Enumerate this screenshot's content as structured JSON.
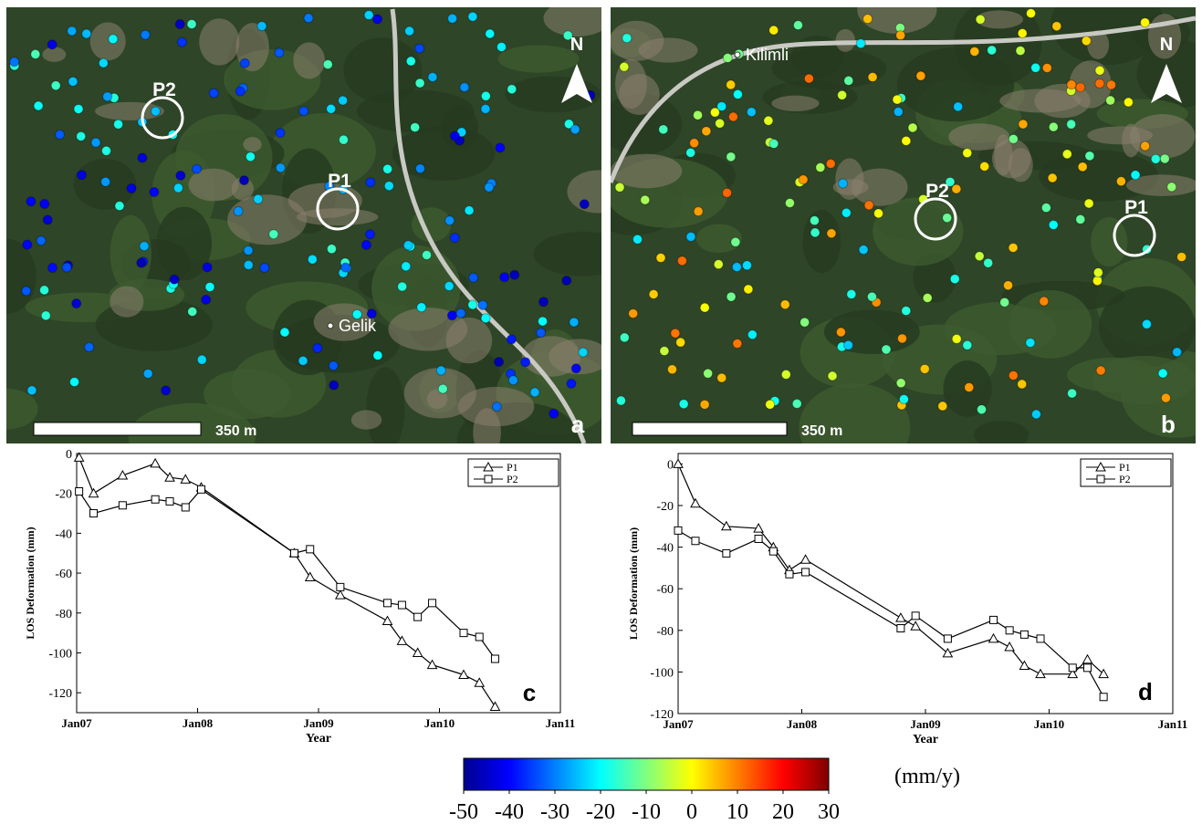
{
  "maps": [
    {
      "letter": "a",
      "scale": "350 m",
      "north": "N",
      "place": "Gelik",
      "points": [
        "P2",
        "P1"
      ]
    },
    {
      "letter": "b",
      "scale": "350 m",
      "north": "N",
      "place": "Kilimli",
      "points": [
        "P2",
        "P1"
      ]
    }
  ],
  "chart_data": [
    {
      "type": "line",
      "panel": "c",
      "xlabel": "Year",
      "ylabel": "LOS Deformation (mm)",
      "xlim": [
        2007,
        2011
      ],
      "ylim": [
        -130,
        0
      ],
      "xticks": [
        {
          "value": 2007,
          "label": "Jan07"
        },
        {
          "value": 2008,
          "label": "Jan08"
        },
        {
          "value": 2009,
          "label": "Jan09"
        },
        {
          "value": 2010,
          "label": "Jan10"
        },
        {
          "value": 2011,
          "label": "Jan11"
        }
      ],
      "yticks": [
        0,
        -20,
        -40,
        -60,
        -80,
        -100,
        -120
      ],
      "legend": "upper right",
      "x": [
        2007.02,
        2007.14,
        2007.38,
        2007.65,
        2007.77,
        2007.9,
        2008.03,
        2008.8,
        2008.93,
        2009.18,
        2009.57,
        2009.69,
        2009.82,
        2009.94,
        2010.2,
        2010.33,
        2010.46
      ],
      "series": [
        {
          "name": "P1",
          "marker": "triangle",
          "color": "#000000",
          "values": [
            -2,
            -20,
            -11,
            -5,
            -12,
            -13,
            -17,
            -50,
            -62,
            -71,
            -84,
            -94,
            -100,
            -106,
            -111,
            -115,
            -127
          ]
        },
        {
          "name": "P2",
          "marker": "square",
          "color": "#000000",
          "values": [
            -19,
            -30,
            -26,
            -23,
            -24,
            -27,
            -18,
            -50,
            -48,
            -67,
            -75,
            -76,
            -82,
            -75,
            -90,
            -92,
            -103
          ]
        }
      ]
    },
    {
      "type": "line",
      "panel": "d",
      "xlabel": "Year",
      "ylabel": "LOS Deformation (mm)",
      "xlim": [
        2007,
        2011
      ],
      "ylim": [
        -120,
        5
      ],
      "xticks": [
        {
          "value": 2007,
          "label": "Jan07"
        },
        {
          "value": 2008,
          "label": "Jan08"
        },
        {
          "value": 2009,
          "label": "Jan09"
        },
        {
          "value": 2010,
          "label": "Jan10"
        },
        {
          "value": 2011,
          "label": "Jan11"
        }
      ],
      "yticks": [
        0,
        -20,
        -40,
        -60,
        -80,
        -100,
        -120
      ],
      "legend": "upper right",
      "x": [
        2007.0,
        2007.14,
        2007.39,
        2007.65,
        2007.77,
        2007.9,
        2008.03,
        2008.8,
        2008.92,
        2009.18,
        2009.55,
        2009.68,
        2009.8,
        2009.93,
        2010.19,
        2010.31,
        2010.44
      ],
      "series": [
        {
          "name": "P1",
          "marker": "triangle",
          "color": "#000000",
          "values": [
            0,
            -19,
            -30,
            -31,
            -40,
            -51,
            -46,
            -74,
            -78,
            -91,
            -84,
            -88,
            -97,
            -101,
            -101,
            -94,
            -101
          ]
        },
        {
          "name": "P2",
          "marker": "square",
          "color": "#000000",
          "values": [
            -32,
            -37,
            -43,
            -36,
            -42,
            -53,
            -52,
            -79,
            -73,
            -84,
            -75,
            -80,
            -82,
            -84,
            -98,
            -98,
            -112
          ]
        }
      ]
    }
  ],
  "colorbar": {
    "unit": "(mm/y)",
    "lim": [
      -50,
      30
    ],
    "ticks": [
      -50,
      -40,
      -30,
      -20,
      -10,
      0,
      10,
      20,
      30
    ]
  }
}
